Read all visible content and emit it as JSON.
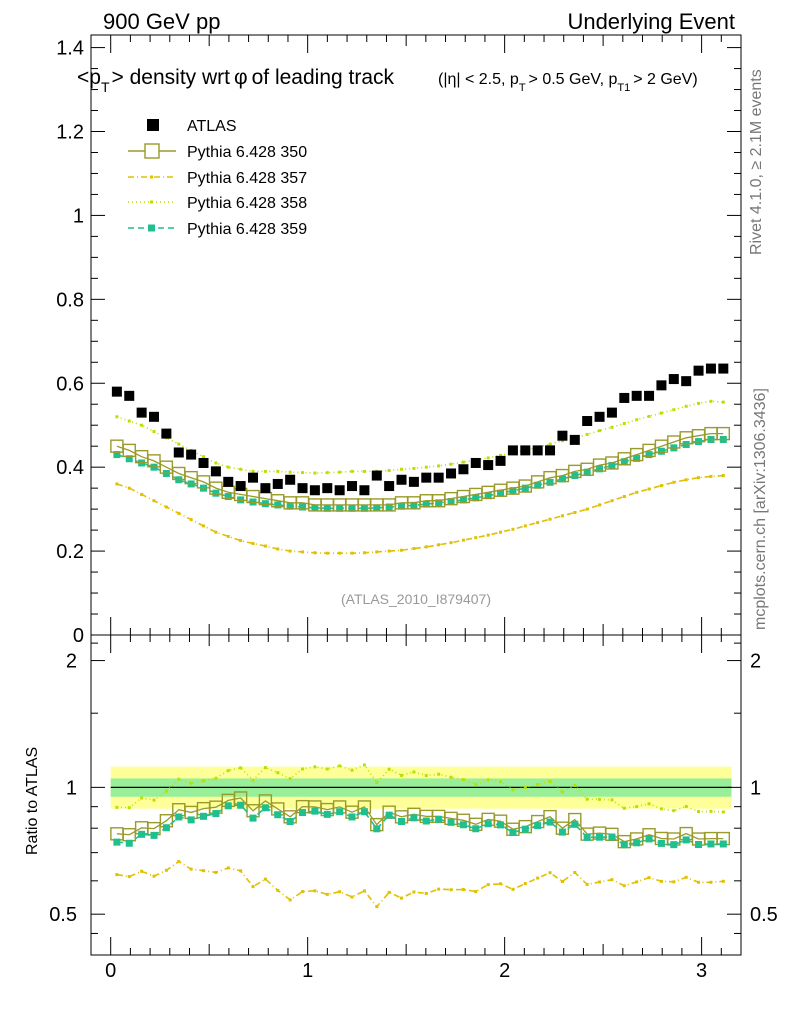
{
  "header": {
    "energy_label": "900 GeV pp",
    "process_label": "Underlying Event"
  },
  "side_labels": {
    "rivet": "Rivet 4.1.0, ≥ 2.1M events",
    "mcplots": "mcplots.cern.ch [arXiv:1306.3436]"
  },
  "chart_data": [
    {
      "type": "scatter",
      "title_main": "<p_T> density wrt φ of leading track",
      "title_cuts": "(|η| < 2.5, p_T > 0.5 GeV, p_T1 > 2 GeV)",
      "title_parts": {
        "open": "<p",
        "sub_t": "T",
        "mid": "> density wrt",
        "phi": "φ",
        "end": "of leading track",
        "cut_a": "(|η| < 2.5, p",
        "cut_b": "> 0.5 GeV, p",
        "sub_t1": "T1",
        "cut_c": "> 2 GeV)"
      },
      "analysis_tag": "(ATLAS_2010_I879407)",
      "xlim": [
        -0.1,
        3.2
      ],
      "ylim": [
        0,
        1.43
      ],
      "yticks": [
        "0",
        "0.2",
        "0.4",
        "0.6",
        "0.8",
        "1",
        "1.2",
        "1.4"
      ],
      "x": [
        0.0314,
        0.0942,
        0.1571,
        0.2199,
        0.2827,
        0.3456,
        0.4084,
        0.4712,
        0.5341,
        0.5969,
        0.6597,
        0.7226,
        0.7854,
        0.8482,
        0.9111,
        0.9739,
        1.0367,
        1.0996,
        1.1624,
        1.2252,
        1.2881,
        1.3509,
        1.4137,
        1.4765,
        1.5394,
        1.6022,
        1.665,
        1.7279,
        1.7907,
        1.8535,
        1.9164,
        1.9792,
        2.042,
        2.1049,
        2.1677,
        2.2305,
        2.2934,
        2.3562,
        2.419,
        2.4819,
        2.5447,
        2.6075,
        2.6704,
        2.7332,
        2.796,
        2.8589,
        2.9217,
        2.9845,
        3.0474,
        3.1102
      ],
      "series": [
        {
          "name": "ATLAS",
          "style": "data",
          "color": "#000000",
          "values": [
            0.58,
            0.57,
            0.53,
            0.52,
            0.48,
            0.435,
            0.43,
            0.41,
            0.39,
            0.365,
            0.355,
            0.375,
            0.35,
            0.36,
            0.37,
            0.35,
            0.345,
            0.35,
            0.345,
            0.355,
            0.345,
            0.38,
            0.355,
            0.37,
            0.365,
            0.375,
            0.375,
            0.385,
            0.395,
            0.41,
            0.405,
            0.415,
            0.44,
            0.44,
            0.44,
            0.44,
            0.475,
            0.465,
            0.51,
            0.52,
            0.53,
            0.565,
            0.57,
            0.57,
            0.595,
            0.61,
            0.605,
            0.63,
            0.635,
            0.635
          ]
        },
        {
          "name": "Pythia 6.428 350",
          "style": "open-square",
          "color": "#9a9a2a",
          "values": [
            0.45,
            0.44,
            0.425,
            0.415,
            0.4,
            0.385,
            0.375,
            0.365,
            0.35,
            0.34,
            0.335,
            0.33,
            0.325,
            0.32,
            0.315,
            0.315,
            0.31,
            0.31,
            0.31,
            0.31,
            0.31,
            0.31,
            0.31,
            0.315,
            0.315,
            0.32,
            0.32,
            0.325,
            0.33,
            0.335,
            0.34,
            0.345,
            0.35,
            0.355,
            0.365,
            0.375,
            0.38,
            0.39,
            0.395,
            0.405,
            0.41,
            0.42,
            0.43,
            0.44,
            0.45,
            0.46,
            0.47,
            0.475,
            0.48,
            0.48
          ]
        },
        {
          "name": "Pythia 6.428 357",
          "style": "dashdot",
          "color": "#e0c000",
          "values": [
            0.36,
            0.35,
            0.335,
            0.32,
            0.305,
            0.29,
            0.275,
            0.26,
            0.245,
            0.235,
            0.225,
            0.218,
            0.212,
            0.205,
            0.2,
            0.198,
            0.196,
            0.195,
            0.195,
            0.195,
            0.196,
            0.198,
            0.2,
            0.202,
            0.206,
            0.21,
            0.215,
            0.22,
            0.226,
            0.232,
            0.238,
            0.245,
            0.252,
            0.26,
            0.268,
            0.276,
            0.284,
            0.292,
            0.3,
            0.31,
            0.32,
            0.33,
            0.34,
            0.348,
            0.356,
            0.364,
            0.37,
            0.375,
            0.378,
            0.38
          ]
        },
        {
          "name": "Pythia 6.428 358",
          "style": "dotted",
          "color": "#b8e000",
          "values": [
            0.52,
            0.51,
            0.5,
            0.485,
            0.47,
            0.455,
            0.44,
            0.425,
            0.41,
            0.4,
            0.395,
            0.39,
            0.39,
            0.39,
            0.388,
            0.387,
            0.386,
            0.387,
            0.388,
            0.39,
            0.39,
            0.39,
            0.392,
            0.395,
            0.397,
            0.4,
            0.403,
            0.407,
            0.412,
            0.417,
            0.422,
            0.428,
            0.434,
            0.44,
            0.447,
            0.455,
            0.463,
            0.47,
            0.478,
            0.487,
            0.495,
            0.504,
            0.513,
            0.521,
            0.529,
            0.537,
            0.545,
            0.552,
            0.557,
            0.555
          ]
        },
        {
          "name": "Pythia 6.428 359",
          "style": "dashed",
          "color": "#1fbf8f",
          "values": [
            0.43,
            0.42,
            0.41,
            0.4,
            0.385,
            0.37,
            0.36,
            0.35,
            0.338,
            0.33,
            0.322,
            0.317,
            0.313,
            0.31,
            0.307,
            0.305,
            0.303,
            0.302,
            0.302,
            0.302,
            0.302,
            0.303,
            0.305,
            0.307,
            0.309,
            0.312,
            0.315,
            0.318,
            0.322,
            0.327,
            0.332,
            0.338,
            0.344,
            0.35,
            0.357,
            0.364,
            0.372,
            0.38,
            0.388,
            0.396,
            0.404,
            0.413,
            0.421,
            0.43,
            0.438,
            0.446,
            0.454,
            0.461,
            0.466,
            0.466
          ]
        }
      ]
    },
    {
      "type": "line",
      "ylabel": "Ratio to ATLAS",
      "xlim": [
        -0.1,
        3.2
      ],
      "ylim": [
        0.4,
        2.3
      ],
      "yscale": "log",
      "yticks": [
        "0.5",
        "1",
        "2"
      ],
      "xticks": [
        "0",
        "1",
        "2",
        "3"
      ],
      "band_inner": [
        0.95,
        1.05
      ],
      "band_outer": [
        0.89,
        1.12
      ]
    }
  ]
}
